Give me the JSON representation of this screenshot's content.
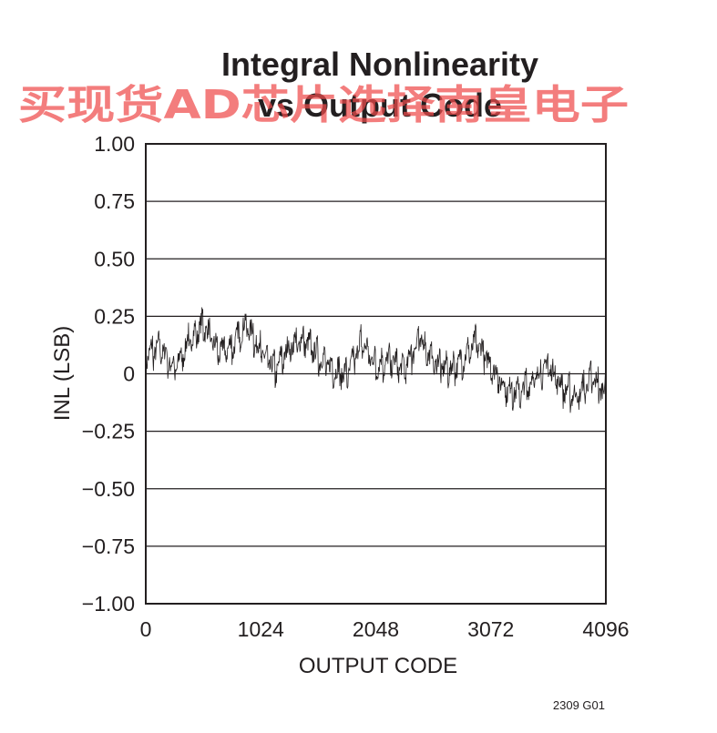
{
  "chart_data": {
    "type": "line",
    "title": [
      "Integral Nonlinearity",
      "vs Output Code"
    ],
    "xlabel": "OUTPUT CODE",
    "ylabel": "INL (LSB)",
    "xlim": [
      0,
      4096
    ],
    "ylim": [
      -1.0,
      1.0
    ],
    "grid": true,
    "xticks": [
      0,
      1024,
      2048,
      3072,
      4096
    ],
    "xtick_labels": [
      "0",
      "1024",
      "2048",
      "3072",
      "4096"
    ],
    "yticks": [
      1.0,
      0.75,
      0.5,
      0.25,
      0,
      -0.25,
      -0.5,
      -0.75,
      -1.0
    ],
    "ytick_labels": [
      "1.00",
      "0.75",
      "0.50",
      "0.25",
      "0",
      "−0.25",
      "−0.50",
      "−0.75",
      "−1.00"
    ],
    "series": [
      {
        "x": [
          0,
          128,
          256,
          384,
          512,
          640,
          768,
          896,
          1024,
          1152,
          1280,
          1408,
          1536,
          1664,
          1792,
          1920,
          2048,
          2176,
          2304,
          2432,
          2560,
          2688,
          2816,
          2944,
          3072,
          3200,
          3328,
          3456,
          3584,
          3712,
          3840,
          3968,
          4096
        ],
        "y": [
          0.08,
          0.12,
          0.02,
          0.14,
          0.22,
          0.1,
          0.12,
          0.22,
          0.1,
          0.02,
          0.12,
          0.15,
          0.08,
          0.02,
          0.0,
          0.14,
          0.04,
          0.06,
          0.02,
          0.16,
          0.06,
          0.02,
          0.06,
          0.14,
          0.04,
          -0.06,
          -0.08,
          -0.02,
          0.04,
          -0.06,
          -0.1,
          -0.02,
          -0.08
        ],
        "color": "#231f20"
      }
    ]
  },
  "figure_id": "2309 G01",
  "watermark": "买现货AD芯片选择南皇电子"
}
